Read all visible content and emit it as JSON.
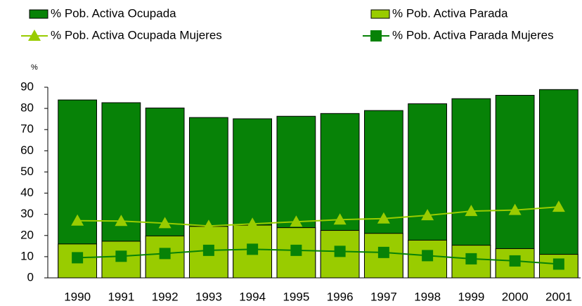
{
  "chart_data": {
    "type": "bar_line",
    "y_label": "%",
    "categories": [
      "1990",
      "1991",
      "1992",
      "1993",
      "1994",
      "1995",
      "1996",
      "1997",
      "1998",
      "1999",
      "2000",
      "2001"
    ],
    "series": [
      {
        "name": "% Pob. Activa Ocupada",
        "kind": "bar",
        "color": "#078207",
        "values": [
          84,
          82.7,
          80.2,
          75.7,
          75.1,
          76.3,
          77.6,
          79,
          82.2,
          84.6,
          86.2,
          88.9
        ]
      },
      {
        "name": "% Pob. Activa Parada",
        "kind": "bar",
        "color": "#99cc00",
        "values": [
          16,
          17.3,
          19.8,
          24.3,
          24.9,
          23.7,
          22.4,
          21,
          17.8,
          15.4,
          13.8,
          11.1
        ]
      },
      {
        "name": "% Pob. Activa Ocupada Mujeres",
        "kind": "line",
        "marker": "triangle",
        "color": "#99cc00",
        "values": [
          27,
          26.8,
          25.8,
          24.5,
          25.5,
          26.5,
          27.5,
          28,
          29.5,
          31.5,
          32,
          33.5
        ]
      },
      {
        "name": "% Pob. Activa Parada Mujeres",
        "kind": "line",
        "marker": "square",
        "color": "#078207",
        "values": [
          9.5,
          10.2,
          11.5,
          13,
          13.5,
          13,
          12.5,
          12,
          10.5,
          9,
          8,
          6.5
        ]
      }
    ],
    "ylim": [
      0,
      90
    ],
    "yticks": [
      0,
      10,
      20,
      30,
      40,
      50,
      60,
      70,
      80,
      90
    ]
  }
}
